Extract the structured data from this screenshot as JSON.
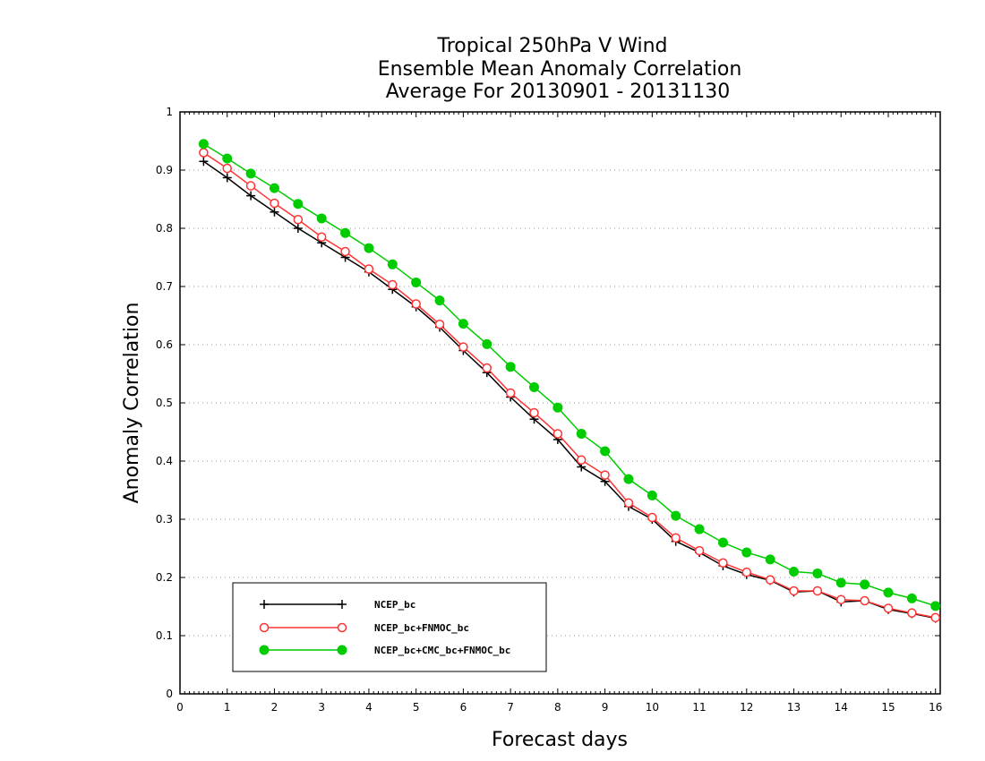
{
  "chart_data": {
    "type": "line",
    "title": [
      "Tropical 250hPa V Wind",
      "Ensemble Mean Anomaly Correlation",
      "Average For 20130901 - 20131130"
    ],
    "xlabel": "Forecast days",
    "ylabel": "Anomaly Correlation",
    "xlim": [
      0,
      16.1
    ],
    "ylim": [
      0,
      1
    ],
    "x_ticks": [
      0,
      1,
      2,
      3,
      4,
      5,
      6,
      7,
      8,
      9,
      10,
      11,
      12,
      13,
      14,
      15,
      16
    ],
    "y_ticks": [
      0,
      0.1,
      0.2,
      0.3,
      0.4,
      0.5,
      0.6,
      0.7,
      0.8,
      0.9,
      1
    ],
    "y_tick_labels": [
      "0",
      "0.1",
      "0.2",
      "0.3",
      "0.4",
      "0.5",
      "0.6",
      "0.7",
      "0.8",
      "0.9",
      "1"
    ],
    "grid": "horizontal dotted",
    "legend_position": "bottom-left",
    "x": [
      0.5,
      1,
      1.5,
      2,
      2.5,
      3,
      3.5,
      4,
      4.5,
      5,
      5.5,
      6,
      6.5,
      7,
      7.5,
      8,
      8.5,
      9,
      9.5,
      10,
      10.5,
      11,
      11.5,
      12,
      12.5,
      13,
      13.5,
      14,
      14.5,
      15,
      15.5,
      16
    ],
    "series": [
      {
        "name": "NCEP_bc",
        "color": "#000000",
        "marker": "plus",
        "values": [
          0.915,
          0.887,
          0.856,
          0.828,
          0.8,
          0.775,
          0.75,
          0.725,
          0.695,
          0.665,
          0.63,
          0.59,
          0.552,
          0.51,
          0.472,
          0.437,
          0.39,
          0.365,
          0.322,
          0.3,
          0.262,
          0.243,
          0.22,
          0.205,
          0.195,
          0.175,
          0.177,
          0.158,
          0.16,
          0.145,
          0.138,
          0.13
        ]
      },
      {
        "name": "NCEP_bc+FNMOC_bc",
        "color": "#ff3333",
        "marker": "open-circle",
        "values": [
          0.93,
          0.903,
          0.873,
          0.843,
          0.815,
          0.785,
          0.76,
          0.73,
          0.703,
          0.67,
          0.635,
          0.596,
          0.56,
          0.517,
          0.483,
          0.447,
          0.402,
          0.376,
          0.328,
          0.303,
          0.268,
          0.246,
          0.225,
          0.209,
          0.196,
          0.177,
          0.177,
          0.162,
          0.16,
          0.147,
          0.139,
          0.131
        ]
      },
      {
        "name": "NCEP_bc+CMC_bc+FNMOC_bc",
        "color": "#00cc00",
        "marker": "filled-circle",
        "values": [
          0.945,
          0.92,
          0.894,
          0.869,
          0.842,
          0.817,
          0.792,
          0.766,
          0.738,
          0.707,
          0.676,
          0.636,
          0.601,
          0.562,
          0.527,
          0.492,
          0.447,
          0.417,
          0.369,
          0.341,
          0.306,
          0.283,
          0.26,
          0.243,
          0.231,
          0.21,
          0.207,
          0.191,
          0.188,
          0.174,
          0.164,
          0.151
        ]
      }
    ]
  }
}
